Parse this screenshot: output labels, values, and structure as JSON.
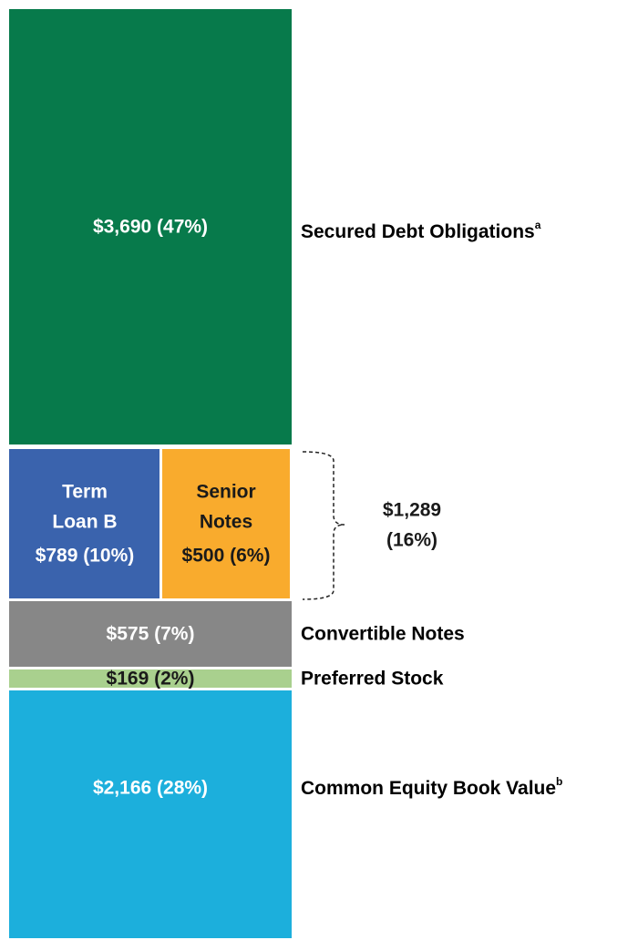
{
  "segments": {
    "secured_debt": {
      "value_label": "$3,690 (47%)",
      "name": "Secured Debt Obligations",
      "note": "a"
    },
    "term_loan_b": {
      "lines": [
        "Term",
        "Loan B"
      ],
      "value_label": "$789 (10%)"
    },
    "senior_notes": {
      "lines": [
        "Senior",
        "Notes"
      ],
      "value_label": "$500 (6%)"
    },
    "debt_group": {
      "lines": [
        "$1,289",
        "(16%)"
      ]
    },
    "convertible_notes": {
      "value_label": "$575 (7%)",
      "name": "Convertible Notes"
    },
    "preferred_stock": {
      "value_label": "$169 (2%)",
      "name": "Preferred Stock"
    },
    "common_equity": {
      "value_label": "$2,166 (28%)",
      "name": "Common Equity Book Value",
      "note": "b"
    }
  }
}
